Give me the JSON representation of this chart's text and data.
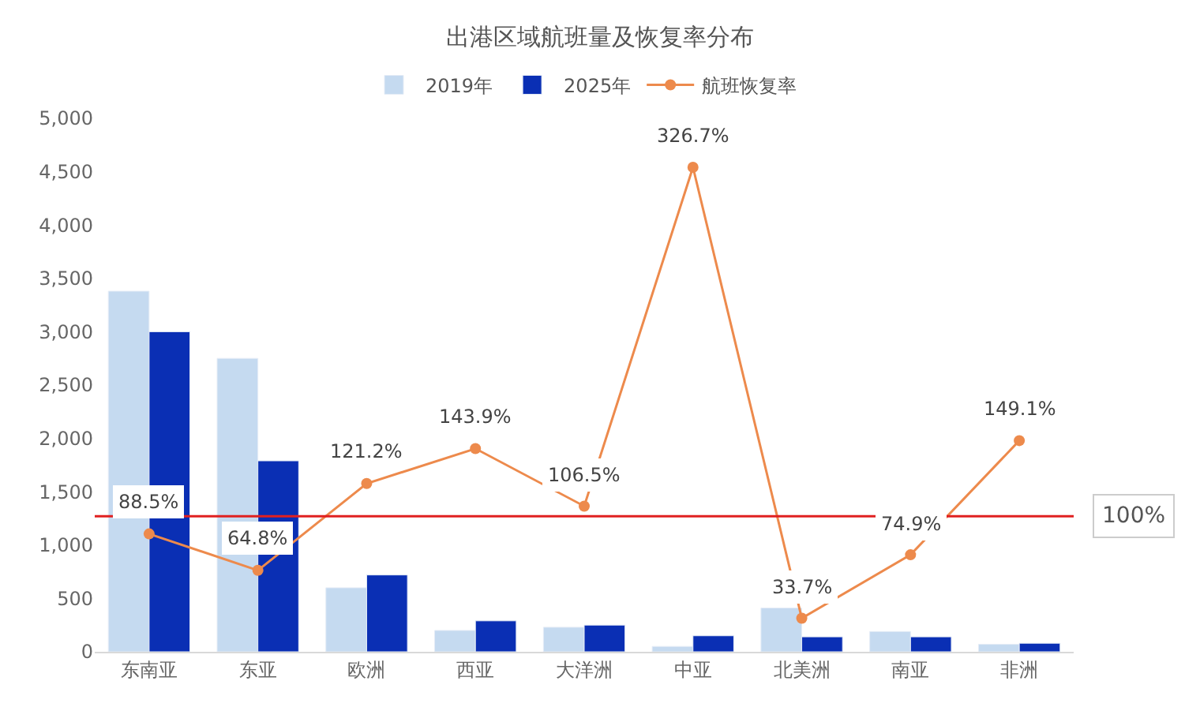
{
  "chart_data": {
    "type": "bar",
    "title": "出港区域航班量及恢复率分布",
    "categories": [
      "东南亚",
      "东亚",
      "欧洲",
      "西亚",
      "大洋洲",
      "中亚",
      "北美洲",
      "南亚",
      "非洲"
    ],
    "series": [
      {
        "name": "2019年",
        "color": "#c5daf0",
        "values": [
          3380,
          2750,
          600,
          200,
          230,
          50,
          410,
          190,
          70
        ]
      },
      {
        "name": "2025年",
        "color": "#0a2fb4",
        "values": [
          3000,
          1790,
          720,
          290,
          250,
          150,
          140,
          140,
          80
        ]
      },
      {
        "name": "航班恢复率",
        "type": "line",
        "axis": "y2",
        "color": "#ed8a4c",
        "marker": "circle",
        "values": [
          88.5,
          64.8,
          121.2,
          143.9,
          106.5,
          326.7,
          33.7,
          74.9,
          149.1
        ],
        "value_labels": [
          "88.5%",
          "64.8%",
          "121.2%",
          "143.9%",
          "106.5%",
          "326.7%",
          "33.7%",
          "74.9%",
          "149.1%"
        ]
      }
    ],
    "ylim": [
      0,
      5000
    ],
    "yticks": [
      {
        "value": 0,
        "label": "0"
      },
      {
        "value": 500,
        "label": "500"
      },
      {
        "value": 1000,
        "label": "1,000"
      },
      {
        "value": 1500,
        "label": "1,500"
      },
      {
        "value": 2000,
        "label": "2,000"
      },
      {
        "value": 2500,
        "label": "2,500"
      },
      {
        "value": 3000,
        "label": "3,000"
      },
      {
        "value": 3500,
        "label": "3,500"
      },
      {
        "value": 4000,
        "label": "4,000"
      },
      {
        "value": 4500,
        "label": "4,500"
      },
      {
        "value": 5000,
        "label": "5,000"
      }
    ],
    "ref_lines": [
      {
        "axis": "y2",
        "value": 100,
        "label": "100%",
        "color": "#e02020"
      }
    ],
    "legend": "top"
  }
}
